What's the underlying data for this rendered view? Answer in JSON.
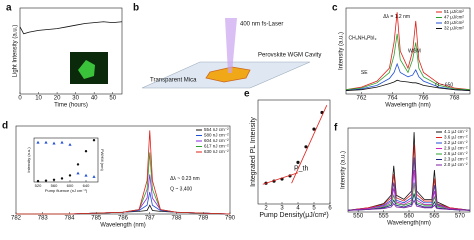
{
  "chart_data": [
    {
      "type": "line",
      "label": "a",
      "xlabel": "Time (hours)",
      "ylabel": "Light Intensity (a.u.)",
      "xlim": [
        0,
        55
      ],
      "ylim": [
        0,
        1
      ],
      "xticks": [
        0,
        10,
        20,
        30,
        40,
        50
      ],
      "x": [
        0,
        2,
        5,
        10,
        15,
        20,
        25,
        30,
        35,
        40,
        45,
        50,
        55
      ],
      "series": [
        {
          "color": "#111111",
          "values": [
            0.78,
            0.7,
            0.72,
            0.74,
            0.75,
            0.76,
            0.78,
            0.8,
            0.82,
            0.83,
            0.84,
            0.83,
            0.84
          ]
        }
      ]
    },
    {
      "type": "line",
      "label": "c",
      "xlabel": "Wavelength (nm)",
      "ylabel": "Intensity (a.u.)",
      "xlim": [
        761,
        769
      ],
      "ylim": [
        0,
        1
      ],
      "xticks": [
        762,
        764,
        766,
        768
      ],
      "legend": "upper right",
      "annotations": [
        "Δλ = 1.2 nm",
        "WGM",
        "SE",
        "CH₃NH₃PbI₃",
        "Q ~ 650"
      ],
      "x": [
        761,
        762,
        763,
        763.8,
        764.1,
        764.3,
        764.5,
        765,
        765.3,
        765.5,
        765.7,
        766,
        767,
        768,
        769
      ],
      "series": [
        {
          "name": "51 μJ/cm²",
          "color": "#e0201b",
          "values": [
            0.05,
            0.08,
            0.15,
            0.3,
            0.6,
            0.95,
            0.5,
            0.3,
            0.5,
            0.85,
            0.4,
            0.25,
            0.12,
            0.07,
            0.05
          ]
        },
        {
          "name": "47 μJ/cm²",
          "color": "#2ca02c",
          "values": [
            0.05,
            0.07,
            0.13,
            0.25,
            0.45,
            0.7,
            0.4,
            0.25,
            0.4,
            0.6,
            0.3,
            0.2,
            0.1,
            0.06,
            0.05
          ]
        },
        {
          "name": "40 μJ/cm²",
          "color": "#1f4fd6",
          "values": [
            0.04,
            0.06,
            0.1,
            0.18,
            0.25,
            0.35,
            0.25,
            0.2,
            0.22,
            0.28,
            0.2,
            0.15,
            0.08,
            0.05,
            0.04
          ]
        },
        {
          "name": "32 μJ/cm²",
          "color": "#111111",
          "values": [
            0.04,
            0.05,
            0.08,
            0.12,
            0.14,
            0.16,
            0.15,
            0.14,
            0.13,
            0.13,
            0.12,
            0.1,
            0.07,
            0.05,
            0.04
          ]
        }
      ]
    },
    {
      "type": "line",
      "label": "d",
      "xlabel": "Wavelength (nm)",
      "xlim": [
        782,
        790
      ],
      "ylim": [
        0,
        1
      ],
      "xticks": [
        782,
        783,
        784,
        785,
        786,
        787,
        788,
        789,
        790
      ],
      "legend": "upper right",
      "annotations": [
        "Δλ ~ 0.23 nm",
        "Q ~ 3,400"
      ],
      "x": [
        782,
        784,
        785,
        786,
        786.6,
        786.9,
        787,
        787.1,
        787.4,
        788,
        789,
        790
      ],
      "series": [
        {
          "name": "554 nJ cm⁻²",
          "color": "#111111",
          "values": [
            0,
            0,
            0.01,
            0.02,
            0.03,
            0.04,
            0.1,
            0.04,
            0.03,
            0.02,
            0.01,
            0
          ]
        },
        {
          "name": "580 nJ cm⁻²",
          "color": "#1f4fd6",
          "values": [
            0,
            0,
            0.01,
            0.02,
            0.04,
            0.1,
            0.25,
            0.1,
            0.04,
            0.02,
            0.01,
            0
          ]
        },
        {
          "name": "604 nJ cm⁻²",
          "color": "#8a2be2",
          "values": [
            0,
            0,
            0.01,
            0.02,
            0.05,
            0.18,
            0.45,
            0.18,
            0.05,
            0.02,
            0.01,
            0
          ]
        },
        {
          "name": "617 nJ cm⁻²",
          "color": "#2ca02c",
          "values": [
            0,
            0,
            0.01,
            0.02,
            0.05,
            0.28,
            0.7,
            0.28,
            0.05,
            0.02,
            0.01,
            0
          ]
        },
        {
          "name": "630 nJ cm⁻²",
          "color": "#e0201b",
          "values": [
            0,
            0,
            0.01,
            0.02,
            0.05,
            0.38,
            0.95,
            0.38,
            0.05,
            0.02,
            0.01,
            0
          ]
        }
      ]
    },
    {
      "type": "scatter",
      "xlabel": "Pump fluence (nJ cm⁻²)",
      "ylabel": "Intensity (a.u.)",
      "y2label": "FWHM (nm)",
      "xlim": [
        510,
        670
      ],
      "ylim": [
        0,
        1
      ],
      "xticks": [
        520,
        560,
        600,
        640
      ],
      "x": [
        520,
        540,
        560,
        580,
        600,
        620,
        640,
        660
      ],
      "series": [
        {
          "color": "#111111",
          "values": [
            0.02,
            0.03,
            0.05,
            0.08,
            0.15,
            0.4,
            0.7,
            0.95
          ]
        },
        {
          "color": "#1f4fd6",
          "marker": "triangle",
          "values": [
            0.9,
            0.9,
            0.88,
            0.9,
            0.85,
            0.2,
            0.15,
            0.12
          ]
        }
      ]
    },
    {
      "type": "scatter",
      "label": "e",
      "xlabel": "Pump Density(μJ/cm²)",
      "ylabel": "Integrated PL Intensity",
      "xlim": [
        1.5,
        6
      ],
      "ylim": [
        0,
        1
      ],
      "xticks": [
        2,
        3,
        4,
        5,
        6
      ],
      "annotations": [
        "P_th"
      ],
      "x": [
        2,
        2.5,
        3,
        3.5,
        4,
        4.5,
        5,
        5.5
      ],
      "series": [
        {
          "color": "#111111",
          "values": [
            0.2,
            0.22,
            0.24,
            0.27,
            0.4,
            0.55,
            0.72,
            0.88
          ]
        },
        {
          "type": "line",
          "color": "#e0201b",
          "x": [
            1.8,
            4
          ],
          "values": [
            0.19,
            0.3
          ]
        },
        {
          "type": "line",
          "color": "#e0201b",
          "x": [
            3.6,
            5.8
          ],
          "values": [
            0.2,
            0.95
          ]
        }
      ]
    },
    {
      "type": "line",
      "label": "f",
      "xlabel": "Wavelength(nm)",
      "ylabel": "Intensity (a.u.)",
      "xlim": [
        548,
        572
      ],
      "ylim": [
        0,
        1
      ],
      "xticks": [
        550,
        555,
        560,
        565,
        570
      ],
      "legend": "upper right",
      "x": [
        548,
        552,
        555,
        556.5,
        557,
        557.5,
        559,
        560.5,
        561,
        561.5,
        563,
        564.5,
        565,
        565.5,
        568,
        572
      ],
      "series": [
        {
          "name": "4.1 μJ cm⁻²",
          "color": "#111111",
          "values": [
            0.02,
            0.05,
            0.1,
            0.2,
            0.55,
            0.2,
            0.15,
            0.25,
            0.95,
            0.25,
            0.15,
            0.15,
            0.5,
            0.12,
            0.05,
            0.02
          ]
        },
        {
          "name": "3.6 μJ cm⁻²",
          "color": "#e0201b",
          "values": [
            0.02,
            0.05,
            0.09,
            0.17,
            0.45,
            0.17,
            0.13,
            0.21,
            0.8,
            0.21,
            0.13,
            0.13,
            0.4,
            0.1,
            0.05,
            0.02
          ]
        },
        {
          "name": "3.2 μJ cm⁻²",
          "color": "#1f4fd6",
          "values": [
            0.02,
            0.04,
            0.08,
            0.14,
            0.35,
            0.14,
            0.11,
            0.17,
            0.65,
            0.17,
            0.11,
            0.11,
            0.32,
            0.09,
            0.04,
            0.02
          ]
        },
        {
          "name": "2.9 μJ cm⁻²",
          "color": "#d020c0",
          "values": [
            0.02,
            0.04,
            0.07,
            0.12,
            0.28,
            0.12,
            0.09,
            0.14,
            0.5,
            0.14,
            0.09,
            0.09,
            0.25,
            0.08,
            0.04,
            0.02
          ]
        },
        {
          "name": "2.6 μJ cm⁻²",
          "color": "#2ca02c",
          "values": [
            0.02,
            0.03,
            0.06,
            0.1,
            0.2,
            0.1,
            0.08,
            0.11,
            0.35,
            0.11,
            0.08,
            0.08,
            0.18,
            0.07,
            0.03,
            0.02
          ]
        },
        {
          "name": "2.3 μJ cm⁻²",
          "color": "#1a237e",
          "values": [
            0.02,
            0.03,
            0.05,
            0.08,
            0.14,
            0.08,
            0.06,
            0.09,
            0.22,
            0.09,
            0.06,
            0.06,
            0.12,
            0.05,
            0.03,
            0.02
          ]
        },
        {
          "name": "2.0 μJ cm⁻²",
          "color": "#7b1fa2",
          "values": [
            0.02,
            0.03,
            0.04,
            0.06,
            0.1,
            0.06,
            0.05,
            0.07,
            0.14,
            0.07,
            0.05,
            0.05,
            0.08,
            0.04,
            0.03,
            0.02
          ]
        }
      ]
    }
  ],
  "diagram": {
    "label": "b",
    "texts": [
      "400 nm fs-Laser",
      "Perovskite WGM Cavity",
      "Transparent Mica"
    ]
  }
}
